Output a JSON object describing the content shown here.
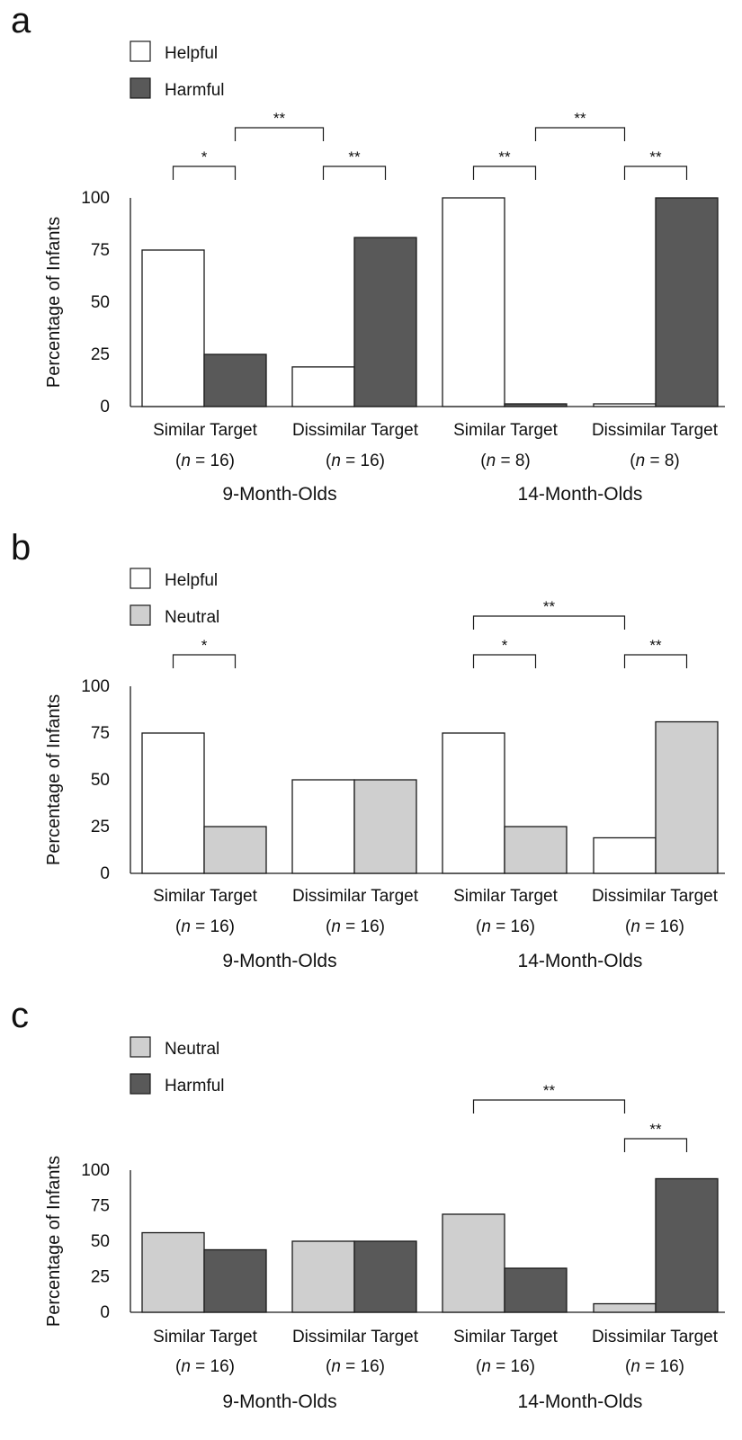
{
  "colors": {
    "Helpful": "#ffffff",
    "Harmful": "#595959",
    "Neutral": "#cfcfcf",
    "stroke": "#1a1a1a"
  },
  "chart_data": [
    {
      "panel": "a",
      "type": "bar",
      "legend": [
        "Helpful",
        "Harmful"
      ],
      "legend_placement": "top-left",
      "ylabel": "Percentage of Infants",
      "ylim": [
        0,
        100
      ],
      "yticks": [
        "0",
        "25",
        "50",
        "75",
        "100"
      ],
      "grid": false,
      "categories": [
        {
          "label": "Similar Target",
          "n_prefix": "(",
          "n_var": "n",
          "n_suffix": " = 16)"
        },
        {
          "label": "Dissimilar Target",
          "n_prefix": "(",
          "n_var": "n",
          "n_suffix": " = 16)"
        },
        {
          "label": "Similar Target",
          "n_prefix": "(",
          "n_var": "n",
          "n_suffix": " = 8)"
        },
        {
          "label": "Dissimilar Target",
          "n_prefix": "(",
          "n_var": "n",
          "n_suffix": " = 8)"
        }
      ],
      "groups": [
        "9-Month-Olds",
        "14-Month-Olds"
      ],
      "series": [
        {
          "name": "Helpful",
          "values": [
            75,
            19,
            100,
            0
          ]
        },
        {
          "name": "Harmful",
          "values": [
            25,
            81,
            0,
            100
          ]
        }
      ],
      "brackets": [
        {
          "from_cat": 0,
          "from_bar": 0,
          "to_cat": 0,
          "to_bar": 1,
          "level": 1,
          "label": "*"
        },
        {
          "from_cat": 1,
          "from_bar": 0,
          "to_cat": 1,
          "to_bar": 1,
          "level": 1,
          "label": "**"
        },
        {
          "from_cat": 0,
          "from_bar": 1,
          "to_cat": 1,
          "to_bar": 0,
          "level": 2,
          "label": "**"
        },
        {
          "from_cat": 2,
          "from_bar": 0,
          "to_cat": 2,
          "to_bar": 1,
          "level": 1,
          "label": "**"
        },
        {
          "from_cat": 3,
          "from_bar": 0,
          "to_cat": 3,
          "to_bar": 1,
          "level": 1,
          "label": "**"
        },
        {
          "from_cat": 2,
          "from_bar": 1,
          "to_cat": 3,
          "to_bar": 0,
          "level": 2,
          "label": "**"
        }
      ]
    },
    {
      "panel": "b",
      "type": "bar",
      "legend": [
        "Helpful",
        "Neutral"
      ],
      "legend_placement": "top-left",
      "ylabel": "Percentage of Infants",
      "ylim": [
        0,
        100
      ],
      "yticks": [
        "0",
        "25",
        "50",
        "75",
        "100"
      ],
      "grid": false,
      "categories": [
        {
          "label": "Similar Target",
          "n_prefix": "(",
          "n_var": "n",
          "n_suffix": " = 16)"
        },
        {
          "label": "Dissimilar Target",
          "n_prefix": "(",
          "n_var": "n",
          "n_suffix": " = 16)"
        },
        {
          "label": "Similar Target",
          "n_prefix": "(",
          "n_var": "n",
          "n_suffix": " = 16)"
        },
        {
          "label": "Dissimilar Target",
          "n_prefix": "(",
          "n_var": "n",
          "n_suffix": " = 16)"
        }
      ],
      "groups": [
        "9-Month-Olds",
        "14-Month-Olds"
      ],
      "series": [
        {
          "name": "Helpful",
          "values": [
            75,
            50,
            75,
            19
          ]
        },
        {
          "name": "Neutral",
          "values": [
            25,
            50,
            25,
            81
          ]
        }
      ],
      "brackets": [
        {
          "from_cat": 0,
          "from_bar": 0,
          "to_cat": 0,
          "to_bar": 1,
          "level": 1,
          "label": "*"
        },
        {
          "from_cat": 2,
          "from_bar": 0,
          "to_cat": 2,
          "to_bar": 1,
          "level": 1,
          "label": "*"
        },
        {
          "from_cat": 3,
          "from_bar": 0,
          "to_cat": 3,
          "to_bar": 1,
          "level": 1,
          "label": "**"
        },
        {
          "from_cat": 2,
          "from_bar": 0,
          "to_cat": 3,
          "to_bar": 0,
          "level": 2,
          "label": "**"
        }
      ]
    },
    {
      "panel": "c",
      "type": "bar",
      "legend": [
        "Neutral",
        "Harmful"
      ],
      "legend_placement": "top-left",
      "ylabel": "Percentage of Infants",
      "ylim": [
        0,
        100
      ],
      "yticks": [
        "0",
        "25",
        "50",
        "75",
        "100"
      ],
      "grid": false,
      "categories": [
        {
          "label": "Similar Target",
          "n_prefix": "(",
          "n_var": "n",
          "n_suffix": " = 16)"
        },
        {
          "label": "Dissimilar Target",
          "n_prefix": "(",
          "n_var": "n",
          "n_suffix": " = 16)"
        },
        {
          "label": "Similar Target",
          "n_prefix": "(",
          "n_var": "n",
          "n_suffix": " = 16)"
        },
        {
          "label": "Dissimilar Target",
          "n_prefix": "(",
          "n_var": "n",
          "n_suffix": " = 16)"
        }
      ],
      "groups": [
        "9-Month-Olds",
        "14-Month-Olds"
      ],
      "series": [
        {
          "name": "Neutral",
          "values": [
            56,
            50,
            69,
            6
          ]
        },
        {
          "name": "Harmful",
          "values": [
            44,
            50,
            31,
            94
          ]
        }
      ],
      "brackets": [
        {
          "from_cat": 3,
          "from_bar": 0,
          "to_cat": 3,
          "to_bar": 1,
          "level": 1,
          "label": "**"
        },
        {
          "from_cat": 2,
          "from_bar": 0,
          "to_cat": 3,
          "to_bar": 0,
          "level": 2,
          "label": "**"
        }
      ]
    }
  ]
}
